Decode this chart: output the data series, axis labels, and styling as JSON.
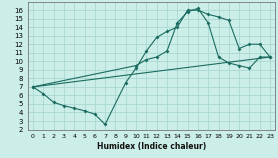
{
  "xlabel": "Humidex (Indice chaleur)",
  "bg_color": "#cceee8",
  "grid_color": "#aad8d2",
  "line_color": "#1a6b60",
  "xlim": [
    -0.5,
    23.5
  ],
  "ylim": [
    2,
    17
  ],
  "xticks": [
    0,
    1,
    2,
    3,
    4,
    5,
    6,
    7,
    8,
    9,
    10,
    11,
    12,
    13,
    14,
    15,
    16,
    17,
    18,
    19,
    20,
    21,
    22,
    23
  ],
  "yticks": [
    2,
    3,
    4,
    5,
    6,
    7,
    8,
    9,
    10,
    11,
    12,
    13,
    14,
    15,
    16
  ],
  "curve1_x": [
    0,
    1,
    2,
    3,
    4,
    5,
    6,
    7,
    9,
    10,
    11,
    12,
    13,
    14,
    15,
    16,
    17,
    18,
    19,
    20,
    21,
    22,
    23
  ],
  "curve1_y": [
    7.0,
    6.2,
    5.2,
    4.8,
    4.5,
    4.2,
    3.8,
    2.6,
    7.5,
    9.2,
    11.2,
    12.8,
    13.5,
    14.0,
    16.0,
    16.0,
    15.5,
    15.2,
    14.8,
    11.5,
    12.0,
    12.0,
    10.5
  ],
  "curve2_x": [
    0,
    10,
    11,
    12,
    13,
    14,
    15,
    16,
    17,
    18,
    19,
    20,
    21,
    22,
    23
  ],
  "curve2_y": [
    7.0,
    9.5,
    10.2,
    10.5,
    11.2,
    14.5,
    15.8,
    16.2,
    14.5,
    10.5,
    9.8,
    9.5,
    9.2,
    10.5,
    10.5
  ],
  "curve3_x": [
    0,
    23
  ],
  "curve3_y": [
    7.0,
    10.5
  ]
}
